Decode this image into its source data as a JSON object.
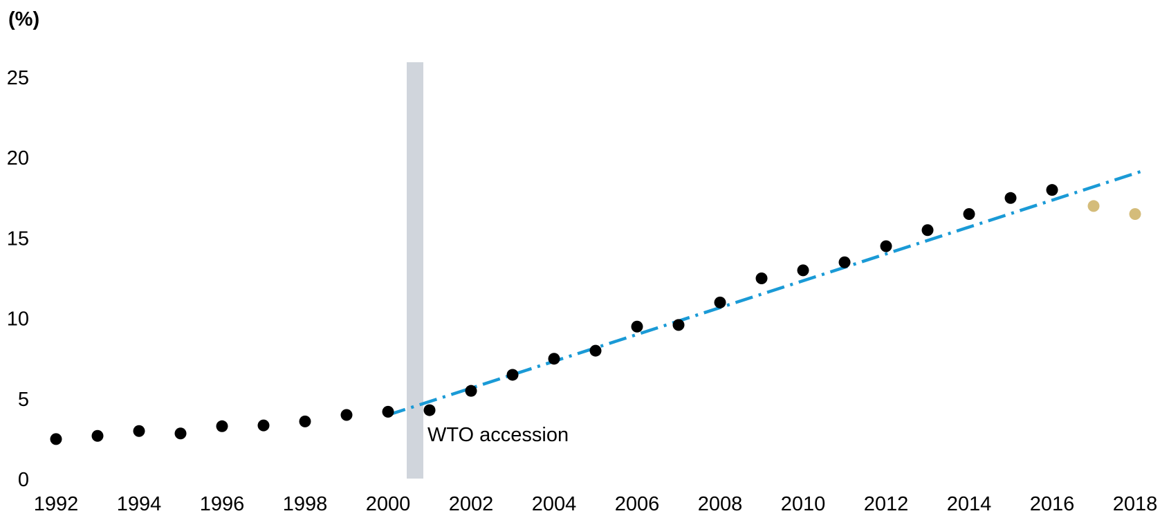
{
  "chart_data": {
    "type": "scatter",
    "unit_label": "(%)",
    "xlim": [
      1991.6,
      2018.4
    ],
    "ylim": [
      0,
      25
    ],
    "yticks": [
      0,
      5,
      10,
      15,
      20,
      25
    ],
    "xticks": [
      1992,
      1994,
      1996,
      1998,
      2000,
      2002,
      2004,
      2006,
      2008,
      2010,
      2012,
      2014,
      2016,
      2018
    ],
    "grid": false,
    "series": [
      {
        "color": "#000000",
        "points": [
          {
            "x": 1992,
            "y": 2.5
          },
          {
            "x": 1993,
            "y": 2.7
          },
          {
            "x": 1994,
            "y": 3.0
          },
          {
            "x": 1995,
            "y": 2.85
          },
          {
            "x": 1996,
            "y": 3.3
          },
          {
            "x": 1997,
            "y": 3.35
          },
          {
            "x": 1998,
            "y": 3.6
          },
          {
            "x": 1999,
            "y": 4.0
          },
          {
            "x": 2000,
            "y": 4.2
          },
          {
            "x": 2001,
            "y": 4.3
          },
          {
            "x": 2002,
            "y": 5.5
          },
          {
            "x": 2003,
            "y": 6.5
          },
          {
            "x": 2004,
            "y": 7.5
          },
          {
            "x": 2005,
            "y": 8.0
          },
          {
            "x": 2006,
            "y": 9.5
          },
          {
            "x": 2007,
            "y": 9.6
          },
          {
            "x": 2008,
            "y": 11.0
          },
          {
            "x": 2009,
            "y": 12.5
          },
          {
            "x": 2010,
            "y": 13.0
          },
          {
            "x": 2011,
            "y": 13.5
          },
          {
            "x": 2012,
            "y": 14.5
          },
          {
            "x": 2013,
            "y": 15.5
          },
          {
            "x": 2014,
            "y": 16.5
          },
          {
            "x": 2015,
            "y": 17.5
          },
          {
            "x": 2016,
            "y": 18.0
          }
        ]
      },
      {
        "color": "#D4BC7A",
        "points": [
          {
            "x": 2017,
            "y": 17.0
          },
          {
            "x": 2018,
            "y": 16.5
          }
        ]
      }
    ],
    "trend_line": {
      "color": "#1A9AD6",
      "style": "dash-dot",
      "points": [
        {
          "x": 2000,
          "y": 4.0
        },
        {
          "x": 2018.2,
          "y": 19.2
        }
      ]
    },
    "shaded_band": {
      "color": "#D0D5DC",
      "x_from": 2000.45,
      "x_to": 2000.85
    },
    "annotations": [
      {
        "text": "WTO accession",
        "x": 2000.85,
        "y": 2.9
      }
    ]
  }
}
